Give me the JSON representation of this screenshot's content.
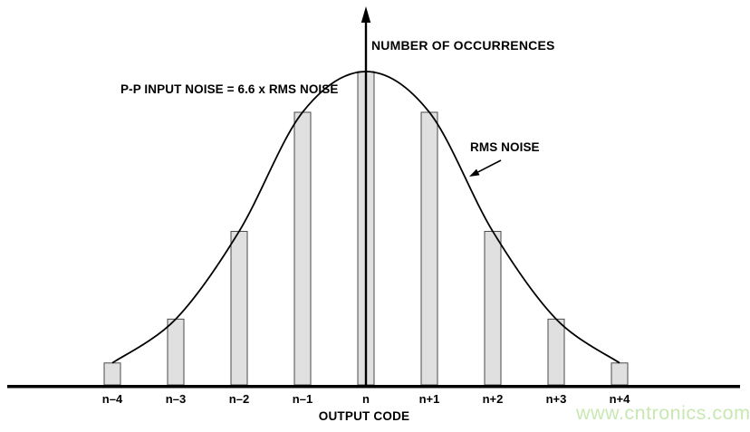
{
  "colors": {
    "background": "#ffffff",
    "bar_fill": "#e0e0e0",
    "bar_stroke": "#4a4a4a",
    "line": "#000000",
    "text": "#000000",
    "watermark": "#c8e8b2"
  },
  "watermark": {
    "text": "www.cntronics.com"
  },
  "chart_data": {
    "type": "bar",
    "title": "",
    "categories": [
      "n–4",
      "n–3",
      "n–2",
      "n–1",
      "n",
      "n+1",
      "n+2",
      "n+3",
      "n+4"
    ],
    "values": [
      0.07,
      0.21,
      0.49,
      0.87,
      1.0,
      0.87,
      0.49,
      0.21,
      0.07
    ],
    "xlabel": "OUTPUT CODE",
    "ylabel": "NUMBER OF OCCURRENCES",
    "ylim": [
      0,
      1.05
    ],
    "grid": false,
    "legend": false,
    "overlay": {
      "type": "curve",
      "shape": "gaussian-bell",
      "label": "RMS NOISE"
    },
    "annotations": [
      {
        "text": "P-P INPUT NOISE = 6.6 x RMS NOISE"
      },
      {
        "text": "RMS NOISE",
        "arrow_to_curve": true
      }
    ]
  }
}
